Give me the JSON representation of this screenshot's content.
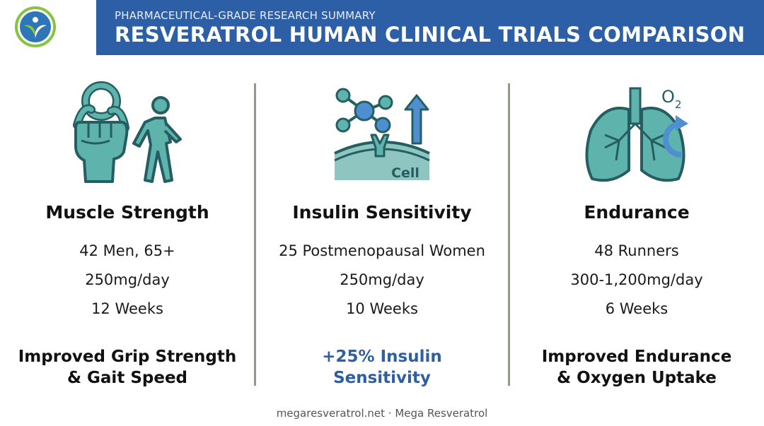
{
  "header": {
    "subtitle": "PHARMACEUTICAL-GRADE RESEARCH SUMMARY",
    "title": "RESVERATROL HUMAN CLINICAL TRIALS COMPARISON",
    "brand_color": "#2d5fa6"
  },
  "icons": {
    "logo": "leaf-person-logo",
    "col1": "grip-strength-walking-icon",
    "col2": "cell-receptor-molecule-icon",
    "col3": "lungs-oxygen-icon",
    "col2_icon_text": "Cell",
    "col3_icon_text": "O",
    "col3_icon_sub": "2"
  },
  "columns": [
    {
      "heading": "Muscle Strength",
      "participants": "42 Men, 65+",
      "dose": "250mg/day",
      "duration": "12 Weeks",
      "result_line1": "Improved Grip Strength",
      "result_line2": "& Gait Speed"
    },
    {
      "heading": "Insulin Sensitivity",
      "participants": "25 Postmenopausal Women",
      "dose": "250mg/day",
      "duration": "10 Weeks",
      "result_line1": "+25% Insulin",
      "result_line2": "Sensitivity"
    },
    {
      "heading": "Endurance",
      "participants": "48 Runners",
      "dose": "300-1,200mg/day",
      "duration": "6 Weeks",
      "result_line1": "Improved Endurance",
      "result_line2": "& Oxygen Uptake"
    }
  ],
  "colors": {
    "icon_teal": "#3f9a93",
    "icon_outline": "#245e62",
    "highlight_blue": "#2e5fa4",
    "divider": "#8e9a86"
  },
  "footer": {
    "text": "megaresveratrol.net · Mega Resveratrol"
  }
}
